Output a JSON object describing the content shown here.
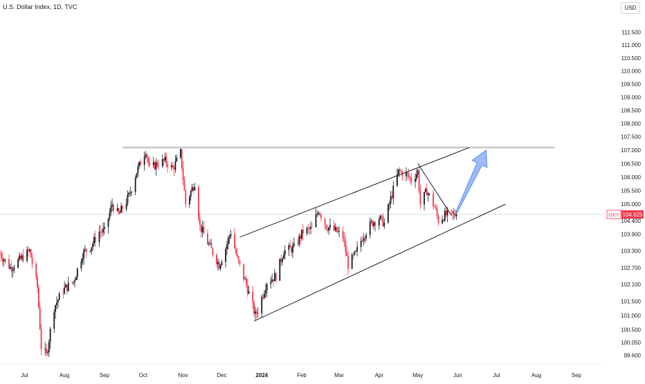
{
  "header": {
    "title": "U.S. Dollar Index, 1D, TVC",
    "currency_label": "USD"
  },
  "colors": {
    "up": "#131722",
    "down": "#f23645",
    "price_tag_bg": "#f23645",
    "resistance": "#c8c8c8",
    "trendline": "#131722",
    "arrow": "#5b8def"
  },
  "price_tag": {
    "symbol": "DXY",
    "value": "104.625",
    "price": 104.625
  },
  "chart_data": {
    "type": "candlestick",
    "title": "U.S. Dollar Index, 1D, TVC",
    "ylim": [
      99.4,
      112.0
    ],
    "y_scale": "log",
    "y_ticks": [
      "111.500",
      "111.000",
      "110.500",
      "110.000",
      "109.500",
      "109.000",
      "108.500",
      "108.000",
      "107.500",
      "107.000",
      "106.500",
      "106.000",
      "105.500",
      "105.000",
      "104.400",
      "103.900",
      "103.300",
      "102.700",
      "102.100",
      "101.500",
      "101.000",
      "100.500",
      "100.050",
      "99.600"
    ],
    "x_ticks": [
      "Jul",
      "Aug",
      "Sep",
      "Oct",
      "Nov",
      "Dec",
      "2024",
      "Feb",
      "Mar",
      "Apr",
      "May",
      "Jun",
      "Jul",
      "Aug",
      "Sep"
    ],
    "x_tick_dates": [
      "2023-07-01",
      "2023-08-01",
      "2023-09-01",
      "2023-10-01",
      "2023-11-01",
      "2023-12-01",
      "2024-01-01",
      "2024-02-01",
      "2024-03-01",
      "2024-04-01",
      "2024-05-01",
      "2024-06-01",
      "2024-07-01",
      "2024-08-01",
      "2024-09-01"
    ],
    "x_range": [
      "2023-06-12",
      "2024-09-22"
    ],
    "grid": false,
    "trend_points": [
      [
        "2023-06-12",
        103.2
      ],
      [
        "2023-06-20",
        102.7
      ],
      [
        "2023-06-28",
        103.0
      ],
      [
        "2023-07-05",
        103.3
      ],
      [
        "2023-07-11",
        102.0
      ],
      [
        "2023-07-14",
        99.9
      ],
      [
        "2023-07-18",
        99.6
      ],
      [
        "2023-07-24",
        101.3
      ],
      [
        "2023-07-31",
        101.9
      ],
      [
        "2023-08-08",
        102.2
      ],
      [
        "2023-08-15",
        103.2
      ],
      [
        "2023-08-22",
        103.5
      ],
      [
        "2023-08-28",
        104.0
      ],
      [
        "2023-09-01",
        104.0
      ],
      [
        "2023-09-07",
        105.0
      ],
      [
        "2023-09-12",
        104.6
      ],
      [
        "2023-09-20",
        105.3
      ],
      [
        "2023-09-26",
        106.2
      ],
      [
        "2023-10-03",
        107.0
      ],
      [
        "2023-10-06",
        106.3
      ],
      [
        "2023-10-12",
        106.5
      ],
      [
        "2023-10-18",
        106.6
      ],
      [
        "2023-10-24",
        106.3
      ],
      [
        "2023-10-30",
        106.9
      ],
      [
        "2023-11-03",
        105.0
      ],
      [
        "2023-11-10",
        105.8
      ],
      [
        "2023-11-14",
        104.2
      ],
      [
        "2023-11-20",
        103.6
      ],
      [
        "2023-11-29",
        102.8
      ],
      [
        "2023-12-04",
        103.4
      ],
      [
        "2023-12-08",
        104.0
      ],
      [
        "2023-12-13",
        103.0
      ],
      [
        "2023-12-20",
        102.1
      ],
      [
        "2023-12-27",
        101.0
      ],
      [
        "2023-12-29",
        101.2
      ],
      [
        "2024-01-05",
        102.2
      ],
      [
        "2024-01-12",
        102.4
      ],
      [
        "2024-01-18",
        103.3
      ],
      [
        "2024-01-26",
        103.4
      ],
      [
        "2024-02-02",
        104.0
      ],
      [
        "2024-02-09",
        104.1
      ],
      [
        "2024-02-14",
        104.8
      ],
      [
        "2024-02-20",
        104.2
      ],
      [
        "2024-02-28",
        104.0
      ],
      [
        "2024-03-04",
        103.8
      ],
      [
        "2024-03-08",
        102.8
      ],
      [
        "2024-03-14",
        103.2
      ],
      [
        "2024-03-19",
        103.8
      ],
      [
        "2024-03-26",
        104.3
      ],
      [
        "2024-04-01",
        104.5
      ],
      [
        "2024-04-05",
        104.3
      ],
      [
        "2024-04-10",
        105.2
      ],
      [
        "2024-04-16",
        106.2
      ],
      [
        "2024-04-22",
        106.1
      ],
      [
        "2024-04-26",
        105.9
      ],
      [
        "2024-05-01",
        106.2
      ],
      [
        "2024-05-03",
        105.0
      ],
      [
        "2024-05-08",
        105.5
      ],
      [
        "2024-05-14",
        104.9
      ],
      [
        "2024-05-17",
        104.4
      ],
      [
        "2024-05-22",
        104.6
      ],
      [
        "2024-05-28",
        104.6
      ],
      [
        "2024-05-31",
        104.625
      ]
    ],
    "annotations": [
      {
        "type": "horizontal-line",
        "label": "resistance",
        "y": 107.1,
        "x_from": "2023-09-15",
        "x_to": "2024-08-15"
      },
      {
        "type": "trendline",
        "label": "channel-upper",
        "from": [
          "2023-12-15",
          103.8
        ],
        "to": [
          "2024-06-10",
          107.1
        ]
      },
      {
        "type": "trendline",
        "label": "channel-lower",
        "from": [
          "2023-12-26",
          100.8
        ],
        "to": [
          "2024-07-08",
          105.0
        ]
      },
      {
        "type": "trendline",
        "label": "wedge-line",
        "from": [
          "2024-05-01",
          106.5
        ],
        "to": [
          "2024-05-27",
          104.6
        ]
      },
      {
        "type": "arrow",
        "label": "projection-arrow",
        "from": [
          "2024-05-31",
          104.7
        ],
        "to": [
          "2024-06-23",
          107.0
        ]
      }
    ]
  }
}
